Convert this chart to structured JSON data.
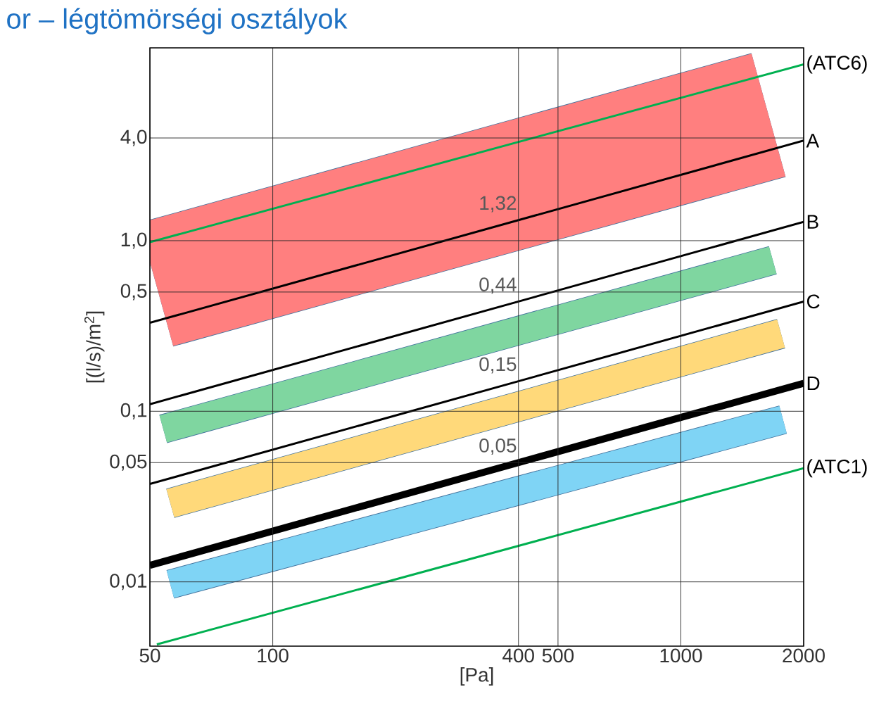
{
  "chart_data": {
    "type": "line",
    "title": "or – légtömörségi osztályok",
    "xlabel": "[Pa]",
    "ylabel": "[(l/s)/m$^{2}$]",
    "log": "xy",
    "grid": true,
    "marker": "none",
    "line_style": "solid",
    "xlim": [
      50,
      2000
    ],
    "ylim": [
      0.0042,
      13.5
    ],
    "xticks": [
      50,
      100,
      400,
      500,
      1000,
      2000
    ],
    "yticks": [
      {
        "value": 0.01,
        "label": "0,01"
      },
      {
        "value": 0.05,
        "label": "0,05"
      },
      {
        "value": 0.1,
        "label": "0,1"
      },
      {
        "value": 0.5,
        "label": "0,5"
      },
      {
        "value": 1,
        "label": "1,0"
      },
      {
        "value": 4,
        "label": "4,0"
      }
    ],
    "series": [
      {
        "color": "#ff7f7f",
        "x": [
          51.8,
          1640
        ],
        "values": [
          0.553,
          5.45
        ]
      },
      {
        "color": "#7fd6a0",
        "x": [
          53.9,
          1680
        ],
        "values": [
          0.0788,
          0.768
        ]
      },
      {
        "color": "#ffd97a",
        "x": [
          56.1,
          1760
        ],
        "values": [
          0.0289,
          0.285
        ]
      },
      {
        "color": "#7fd4f5",
        "x": [
          56.1,
          1780
        ],
        "values": [
          0.00968,
          0.0893
        ]
      },
      {
        "name": "A",
        "color": "#000000",
        "x": [
          50,
          400,
          2000
        ],
        "values": [
          0.33,
          1.32,
          3.86
        ],
        "value_labels": [
          null,
          "1,32",
          null
        ]
      },
      {
        "name": "B",
        "color": "#000000",
        "x": [
          50,
          400,
          2000
        ],
        "values": [
          0.11,
          0.44,
          1.29
        ],
        "value_labels": [
          null,
          "0,44",
          null
        ]
      },
      {
        "name": "C",
        "color": "#000000",
        "x": [
          50,
          400,
          2000
        ],
        "values": [
          0.0375,
          0.15,
          0.44
        ],
        "value_labels": [
          null,
          "0,15",
          null
        ]
      },
      {
        "name": "D",
        "color": "#000000",
        "x": [
          50,
          400,
          2000
        ],
        "values": [
          0.0125,
          0.05,
          0.146
        ],
        "value_labels": [
          null,
          "0,05",
          null
        ]
      },
      {
        "name": "(ATC6)",
        "color": "#00b050",
        "x": [
          50,
          2000
        ],
        "values": [
          0.98,
          10.8
        ]
      },
      {
        "name": "(ATC1)",
        "color": "#00b050",
        "x": [
          52,
          2000
        ],
        "values": [
          0.0043,
          0.0464
        ]
      }
    ]
  }
}
